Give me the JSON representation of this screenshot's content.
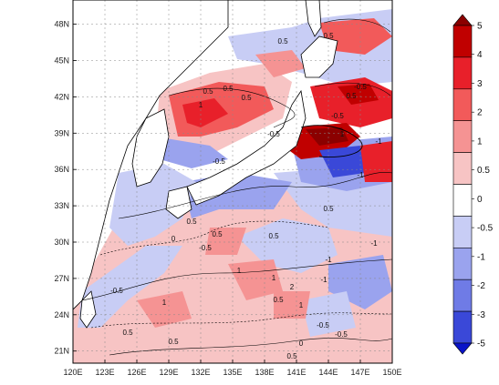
{
  "map": {
    "lon_ticks": [
      "120E",
      "123E",
      "126E",
      "129E",
      "132E",
      "135E",
      "138E",
      "141E",
      "144E",
      "147E",
      "150E"
    ],
    "lat_ticks": [
      "48N",
      "45N",
      "42N",
      "39N",
      "36N",
      "33N",
      "30N",
      "27N",
      "24N",
      "21N"
    ],
    "lon_range": [
      120,
      150
    ],
    "lat_range": [
      20,
      50
    ],
    "gridlines": "dashed"
  },
  "colorbar": {
    "labels": [
      "5",
      "4",
      "3",
      "2",
      "1",
      "0.5",
      "0",
      "-0.5",
      "-1",
      "-2",
      "-3",
      "-5"
    ],
    "colors": [
      "#8b0000",
      "#c00000",
      "#e8202a",
      "#f25a5a",
      "#f59393",
      "#f7c4c4",
      "#ffffff",
      "#c8cdf5",
      "#9aa3ee",
      "#6f7be6",
      "#3a48d8",
      "#0a14c8"
    ]
  },
  "contour_labels": [
    "0.5",
    "0.5",
    "0.5",
    "0.5",
    "1",
    "1",
    "2",
    "1",
    "0.5",
    "-0.5",
    "-1",
    "-1",
    "-1",
    "-0.5",
    "-0.5",
    "-0.5",
    "0.5",
    "0.5",
    "-0.5",
    "0.5",
    "1",
    "-1",
    "-1",
    "1",
    "0.5",
    "1",
    "0.5",
    "-0.5",
    "-0.5",
    "0.5",
    "0",
    "0.5",
    "0.5",
    "0.5",
    "-0.5",
    "0"
  ]
}
